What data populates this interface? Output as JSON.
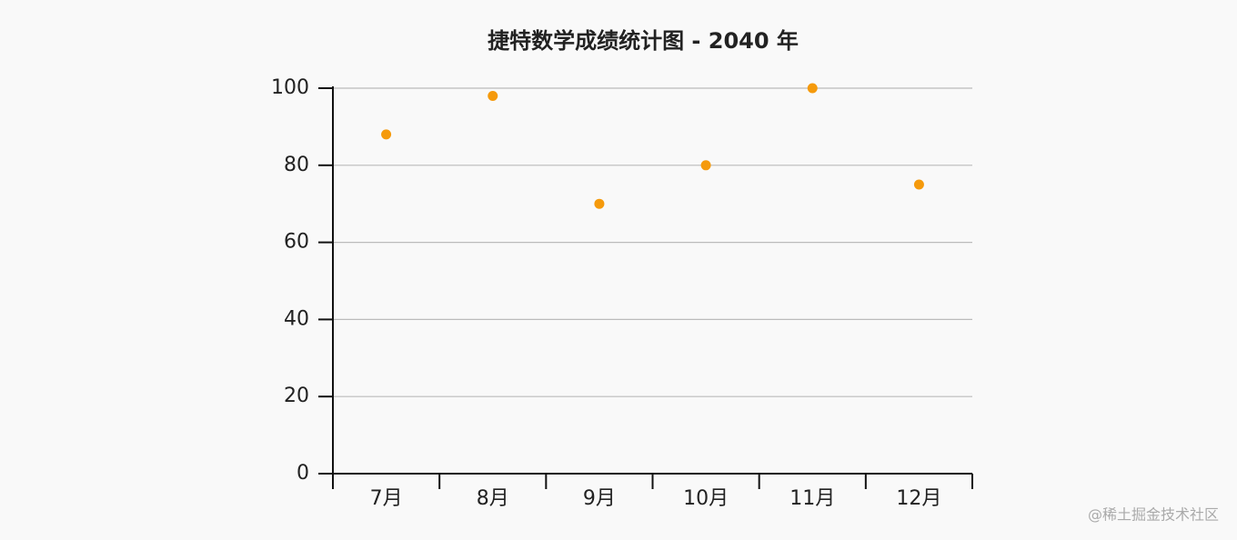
{
  "chart_data": {
    "type": "scatter",
    "title": "捷特数学成绩统计图 - 2040 年",
    "categories": [
      "7月",
      "8月",
      "9月",
      "10月",
      "11月",
      "12月"
    ],
    "values": [
      88,
      98,
      70,
      80,
      100,
      75
    ],
    "color": "#f59a0c",
    "ylim": [
      0,
      100
    ],
    "yticks": [
      0,
      20,
      40,
      60,
      80,
      100
    ],
    "grid": true
  },
  "watermark": "@稀土掘金技术社区"
}
